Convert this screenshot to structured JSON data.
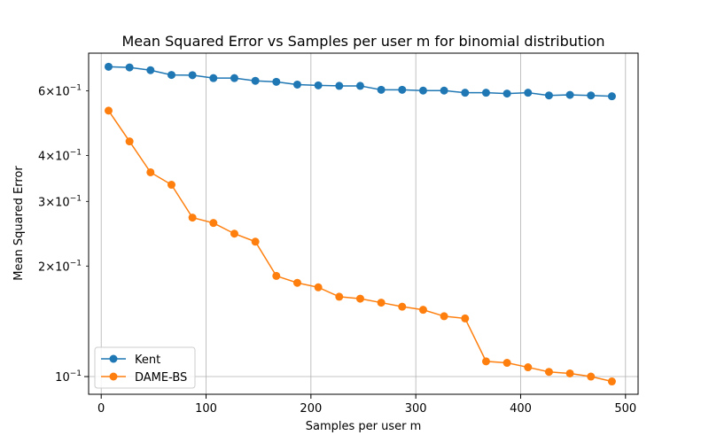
{
  "chart_data": {
    "type": "line",
    "title": "Mean Squared Error vs Samples per user m for binomial distribution",
    "xlabel": "Samples per user m",
    "ylabel": "Mean Squared Error",
    "x_scale": "linear",
    "y_scale": "log",
    "xlim": [
      -12,
      512
    ],
    "ylim": [
      0.0895,
      0.76
    ],
    "x_ticks": [
      0,
      100,
      200,
      300,
      400,
      500
    ],
    "x_tick_labels": [
      "0",
      "100",
      "200",
      "300",
      "400",
      "500"
    ],
    "y_major_ticks": [
      0.1
    ],
    "y_minor_ticks": [
      0.2,
      0.3,
      0.4,
      0.6
    ],
    "y_tick_labels": [
      {
        "value": 0.1,
        "base": "10",
        "exp": "−1"
      },
      {
        "value": 0.2,
        "base": "2×10",
        "exp": "−1"
      },
      {
        "value": 0.3,
        "base": "3×10",
        "exp": "−1"
      },
      {
        "value": 0.4,
        "base": "4×10",
        "exp": "−1"
      },
      {
        "value": 0.6,
        "base": "6×10",
        "exp": "−1"
      }
    ],
    "grid": true,
    "legend_position": "lower-left",
    "x": [
      7,
      27,
      47,
      67,
      87,
      107,
      127,
      147,
      167,
      187,
      207,
      227,
      247,
      267,
      287,
      307,
      327,
      347,
      367,
      387,
      407,
      427,
      447,
      467,
      487
    ],
    "series": [
      {
        "name": "Kent",
        "color": "#1f77b4",
        "values": [
          0.698,
          0.695,
          0.683,
          0.663,
          0.662,
          0.65,
          0.65,
          0.639,
          0.635,
          0.624,
          0.621,
          0.619,
          0.619,
          0.604,
          0.604,
          0.601,
          0.601,
          0.593,
          0.593,
          0.59,
          0.593,
          0.583,
          0.585,
          0.583,
          0.58
        ]
      },
      {
        "name": "DAME-BS",
        "color": "#ff7f0e",
        "values": [
          0.53,
          0.437,
          0.36,
          0.333,
          0.271,
          0.262,
          0.245,
          0.233,
          0.188,
          0.18,
          0.175,
          0.165,
          0.163,
          0.159,
          0.155,
          0.152,
          0.146,
          0.144,
          0.11,
          0.109,
          0.106,
          0.103,
          0.102,
          0.1,
          0.097
        ]
      }
    ]
  }
}
